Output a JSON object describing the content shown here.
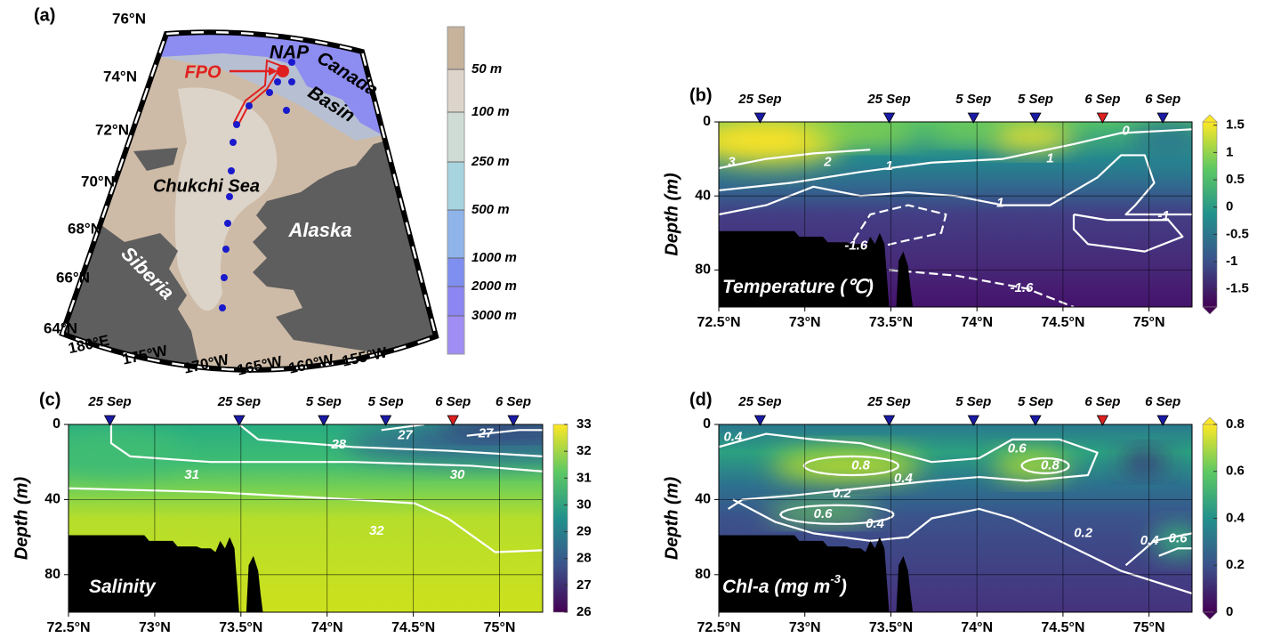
{
  "map": {
    "panel": "(a)",
    "latitudes": [
      "76°N",
      "74°N",
      "72°N",
      "70°N",
      "68°N",
      "66°N",
      "64°N"
    ],
    "longitudes": [
      "180°E",
      "175°W",
      "170°W",
      "165°W",
      "160°W",
      "155°W"
    ],
    "places": [
      "FPO",
      "NAP",
      "Canada",
      "Basin",
      "Chukchi Sea",
      "Alaska",
      "Siberia"
    ],
    "depth_legend": {
      "labels": [
        "50 m",
        "100 m",
        "250 m",
        "500 m",
        "1000 m",
        "2000 m",
        "3000 m"
      ],
      "colors": [
        "#c7b29c",
        "#ddd5cb",
        "#cfdcd6",
        "#a8d4e0",
        "#8fb4ea",
        "#7f8ff0",
        "#8c86f2",
        "#a08ef4"
      ]
    }
  },
  "stations": {
    "dates": [
      "25 Sep",
      "25 Sep",
      "5 Sep",
      "5 Sep",
      "6 Sep",
      "6 Sep"
    ],
    "latitudes": [
      72.74,
      73.49,
      73.98,
      74.34,
      74.73,
      75.08
    ],
    "colors": [
      "#1a1aa6",
      "#1a1aa6",
      "#1a1aa6",
      "#1a1aa6",
      "#e02020",
      "#1a1aa6"
    ]
  },
  "section_axes": {
    "xlim": [
      72.5,
      75.25
    ],
    "xticks": [
      {
        "value": 72.5,
        "label": "72.5°N"
      },
      {
        "value": 73,
        "label": "73°N"
      },
      {
        "value": 73.5,
        "label": "73.5°N"
      },
      {
        "value": 74,
        "label": "74°N"
      },
      {
        "value": 74.5,
        "label": "74.5°N"
      },
      {
        "value": 75,
        "label": "75°N"
      }
    ],
    "ylabel": "Depth (m)",
    "ylim": [
      0,
      100
    ],
    "yticks": [
      0,
      40,
      80
    ],
    "grid": true
  },
  "sections": [
    {
      "panel": "(b)",
      "variable": [
        "Temperature (℃)"
      ],
      "colorbar": {
        "lim": [
          -1.83,
          1.56
        ],
        "ticks": [
          1.5,
          1,
          0.5,
          0,
          -0.5,
          -1,
          -1.5
        ],
        "colors": [
          "#440154",
          "#3b528b",
          "#21918c",
          "#5ec962",
          "#fde725"
        ]
      },
      "contour_labels": [
        "3",
        "2",
        "1",
        "1",
        "0",
        "-1",
        "-1",
        "-1.6",
        "-1.6"
      ]
    },
    {
      "panel": "(c)",
      "variable": [
        "Salinity"
      ],
      "colorbar": {
        "lim": [
          26,
          33
        ],
        "ticks": [
          33,
          32,
          31,
          30,
          29,
          28,
          27,
          26
        ],
        "colors": [
          "#440154",
          "#3b528b",
          "#21918c",
          "#5ec962",
          "#fde725"
        ]
      },
      "contour_labels": [
        "28",
        "27",
        "27",
        "31",
        "30",
        "32"
      ]
    },
    {
      "panel": "(d)",
      "variable": [
        "Chl-a (mg m",
        "-3",
        ")"
      ],
      "colorbar": {
        "lim": [
          0,
          0.8
        ],
        "ticks": [
          0.8,
          0.6,
          0.4,
          0.2,
          0
        ],
        "colors": [
          "#440154",
          "#3b528b",
          "#21918c",
          "#5ec962",
          "#fde725"
        ]
      },
      "contour_labels": [
        "0.4",
        "0.8",
        "0.6",
        "0.8",
        "0.4",
        "0.2",
        "0.6",
        "0.4",
        "0.2",
        "0.4",
        "0.6"
      ]
    }
  ]
}
